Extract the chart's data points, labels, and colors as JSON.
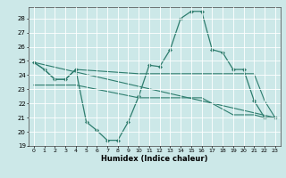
{
  "title": "",
  "xlabel": "Humidex (Indice chaleur)",
  "background_color": "#cce8e8",
  "grid_color": "#ffffff",
  "line_color": "#2e7d6e",
  "xlim": [
    -0.5,
    23.5
  ],
  "ylim": [
    19,
    28.8
  ],
  "yticks": [
    19,
    20,
    21,
    22,
    23,
    24,
    25,
    26,
    27,
    28
  ],
  "xticks": [
    0,
    1,
    2,
    3,
    4,
    5,
    6,
    7,
    8,
    9,
    10,
    11,
    12,
    13,
    14,
    15,
    16,
    17,
    18,
    19,
    20,
    21,
    22,
    23
  ],
  "series": [
    {
      "x": [
        0,
        1,
        2,
        3,
        4,
        5,
        6,
        7,
        8,
        9,
        10,
        11,
        12,
        13,
        14,
        15,
        16,
        17,
        18,
        19,
        20,
        21,
        22,
        23
      ],
      "y": [
        24.9,
        24.4,
        23.7,
        23.7,
        24.4,
        20.7,
        20.1,
        19.4,
        19.4,
        20.7,
        22.5,
        24.7,
        24.6,
        25.8,
        28.0,
        28.5,
        28.5,
        25.8,
        25.6,
        24.4,
        24.4,
        22.2,
        21.0,
        21.0
      ],
      "marker": "D",
      "markersize": 2.2,
      "linewidth": 0.9
    },
    {
      "x": [
        0,
        1,
        2,
        3,
        4,
        10,
        11,
        12,
        13,
        14,
        15,
        16,
        17,
        18,
        19,
        20,
        21,
        22,
        23
      ],
      "y": [
        24.9,
        24.4,
        23.7,
        23.7,
        24.4,
        24.1,
        24.1,
        24.1,
        24.1,
        24.1,
        24.1,
        24.1,
        24.1,
        24.1,
        24.1,
        24.1,
        24.1,
        22.2,
        21.0
      ],
      "marker": null,
      "markersize": 0,
      "linewidth": 0.8
    },
    {
      "x": [
        0,
        23
      ],
      "y": [
        24.9,
        21.0
      ],
      "marker": null,
      "markersize": 0,
      "linewidth": 0.8
    },
    {
      "x": [
        0,
        4,
        10,
        16,
        19,
        20,
        21,
        22,
        23
      ],
      "y": [
        23.3,
        23.3,
        22.4,
        22.4,
        21.2,
        21.2,
        21.2,
        21.0,
        21.0
      ],
      "marker": null,
      "markersize": 0,
      "linewidth": 0.8
    }
  ]
}
